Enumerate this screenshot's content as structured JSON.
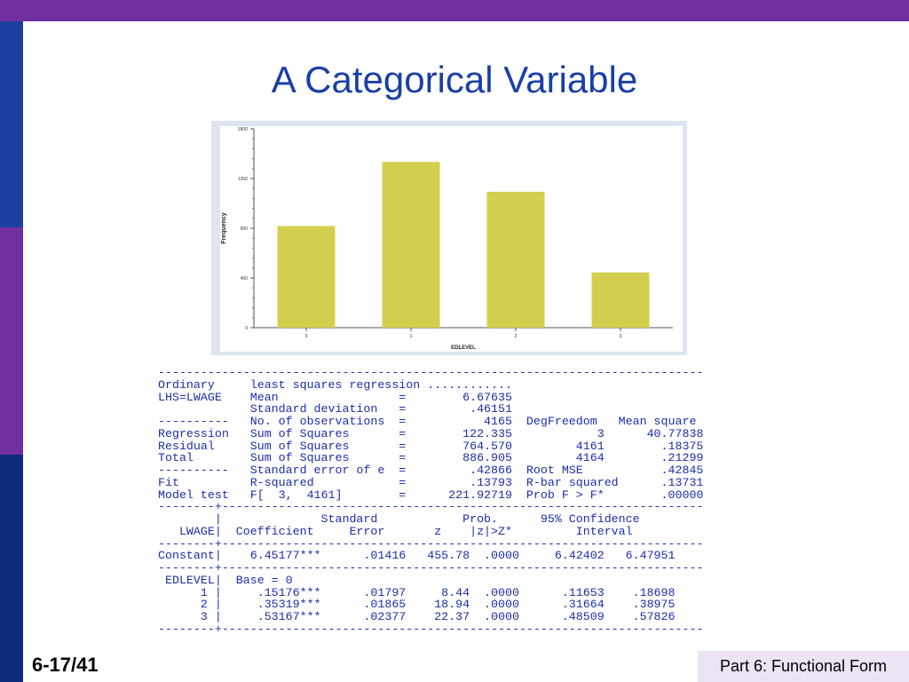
{
  "slide": {
    "title": "A Categorical Variable",
    "page_number": "6-17/41",
    "footer": "Part 6: Functional Form",
    "colors": {
      "accent_purple": "#7030a0",
      "accent_blue": "#1c3fa0",
      "title": "#1a3fa6",
      "output_text": "#1a2ea8",
      "bar": "#d4ce4e"
    }
  },
  "chart_data": {
    "type": "bar",
    "categories": [
      "0",
      "1",
      "2",
      "3"
    ],
    "values": [
      920,
      1500,
      1230,
      500
    ],
    "xlabel": "EDLEVEL",
    "ylabel": "Frequency",
    "ylim": [
      0,
      1800
    ],
    "yticks": [
      0,
      450,
      900,
      1350,
      1800
    ],
    "grid": false
  },
  "regression_output": {
    "lines": [
      "-----------------------------------------------------------------------------",
      "Ordinary     least squares regression ............",
      "LHS=LWAGE    Mean                 =        6.67635",
      "             Standard deviation   =         .46151",
      "----------   No. of observations  =           4165  DegFreedom   Mean square",
      "Regression   Sum of Squares       =        122.335            3      40.77838",
      "Residual     Sum of Squares       =        764.570         4161        .18375",
      "Total        Sum of Squares       =        886.905         4164        .21299",
      "----------   Standard error of e  =         .42866  Root MSE           .42845",
      "Fit          R-squared            =         .13793  R-bar squared      .13731",
      "Model test   F[  3,  4161]        =      221.92719  Prob F > F*        .00000",
      "--------+--------------------------------------------------------------------",
      "        |              Standard            Prob.      95% Confidence",
      "   LWAGE|  Coefficient     Error       z    |z|>Z*         Interval",
      "--------+--------------------------------------------------------------------",
      "Constant|    6.45177***      .01416   455.78  .0000     6.42402   6.47951",
      "--------+--------------------------------------------------------------------",
      " EDLEVEL|  Base = 0",
      "      1 |     .15176***      .01797     8.44  .0000      .11653    .18698",
      "      2 |     .35319***      .01865    18.94  .0000      .31664    .38975",
      "      3 |     .53167***      .02377    22.37  .0000      .48509    .57826",
      "--------+--------------------------------------------------------------------"
    ]
  }
}
